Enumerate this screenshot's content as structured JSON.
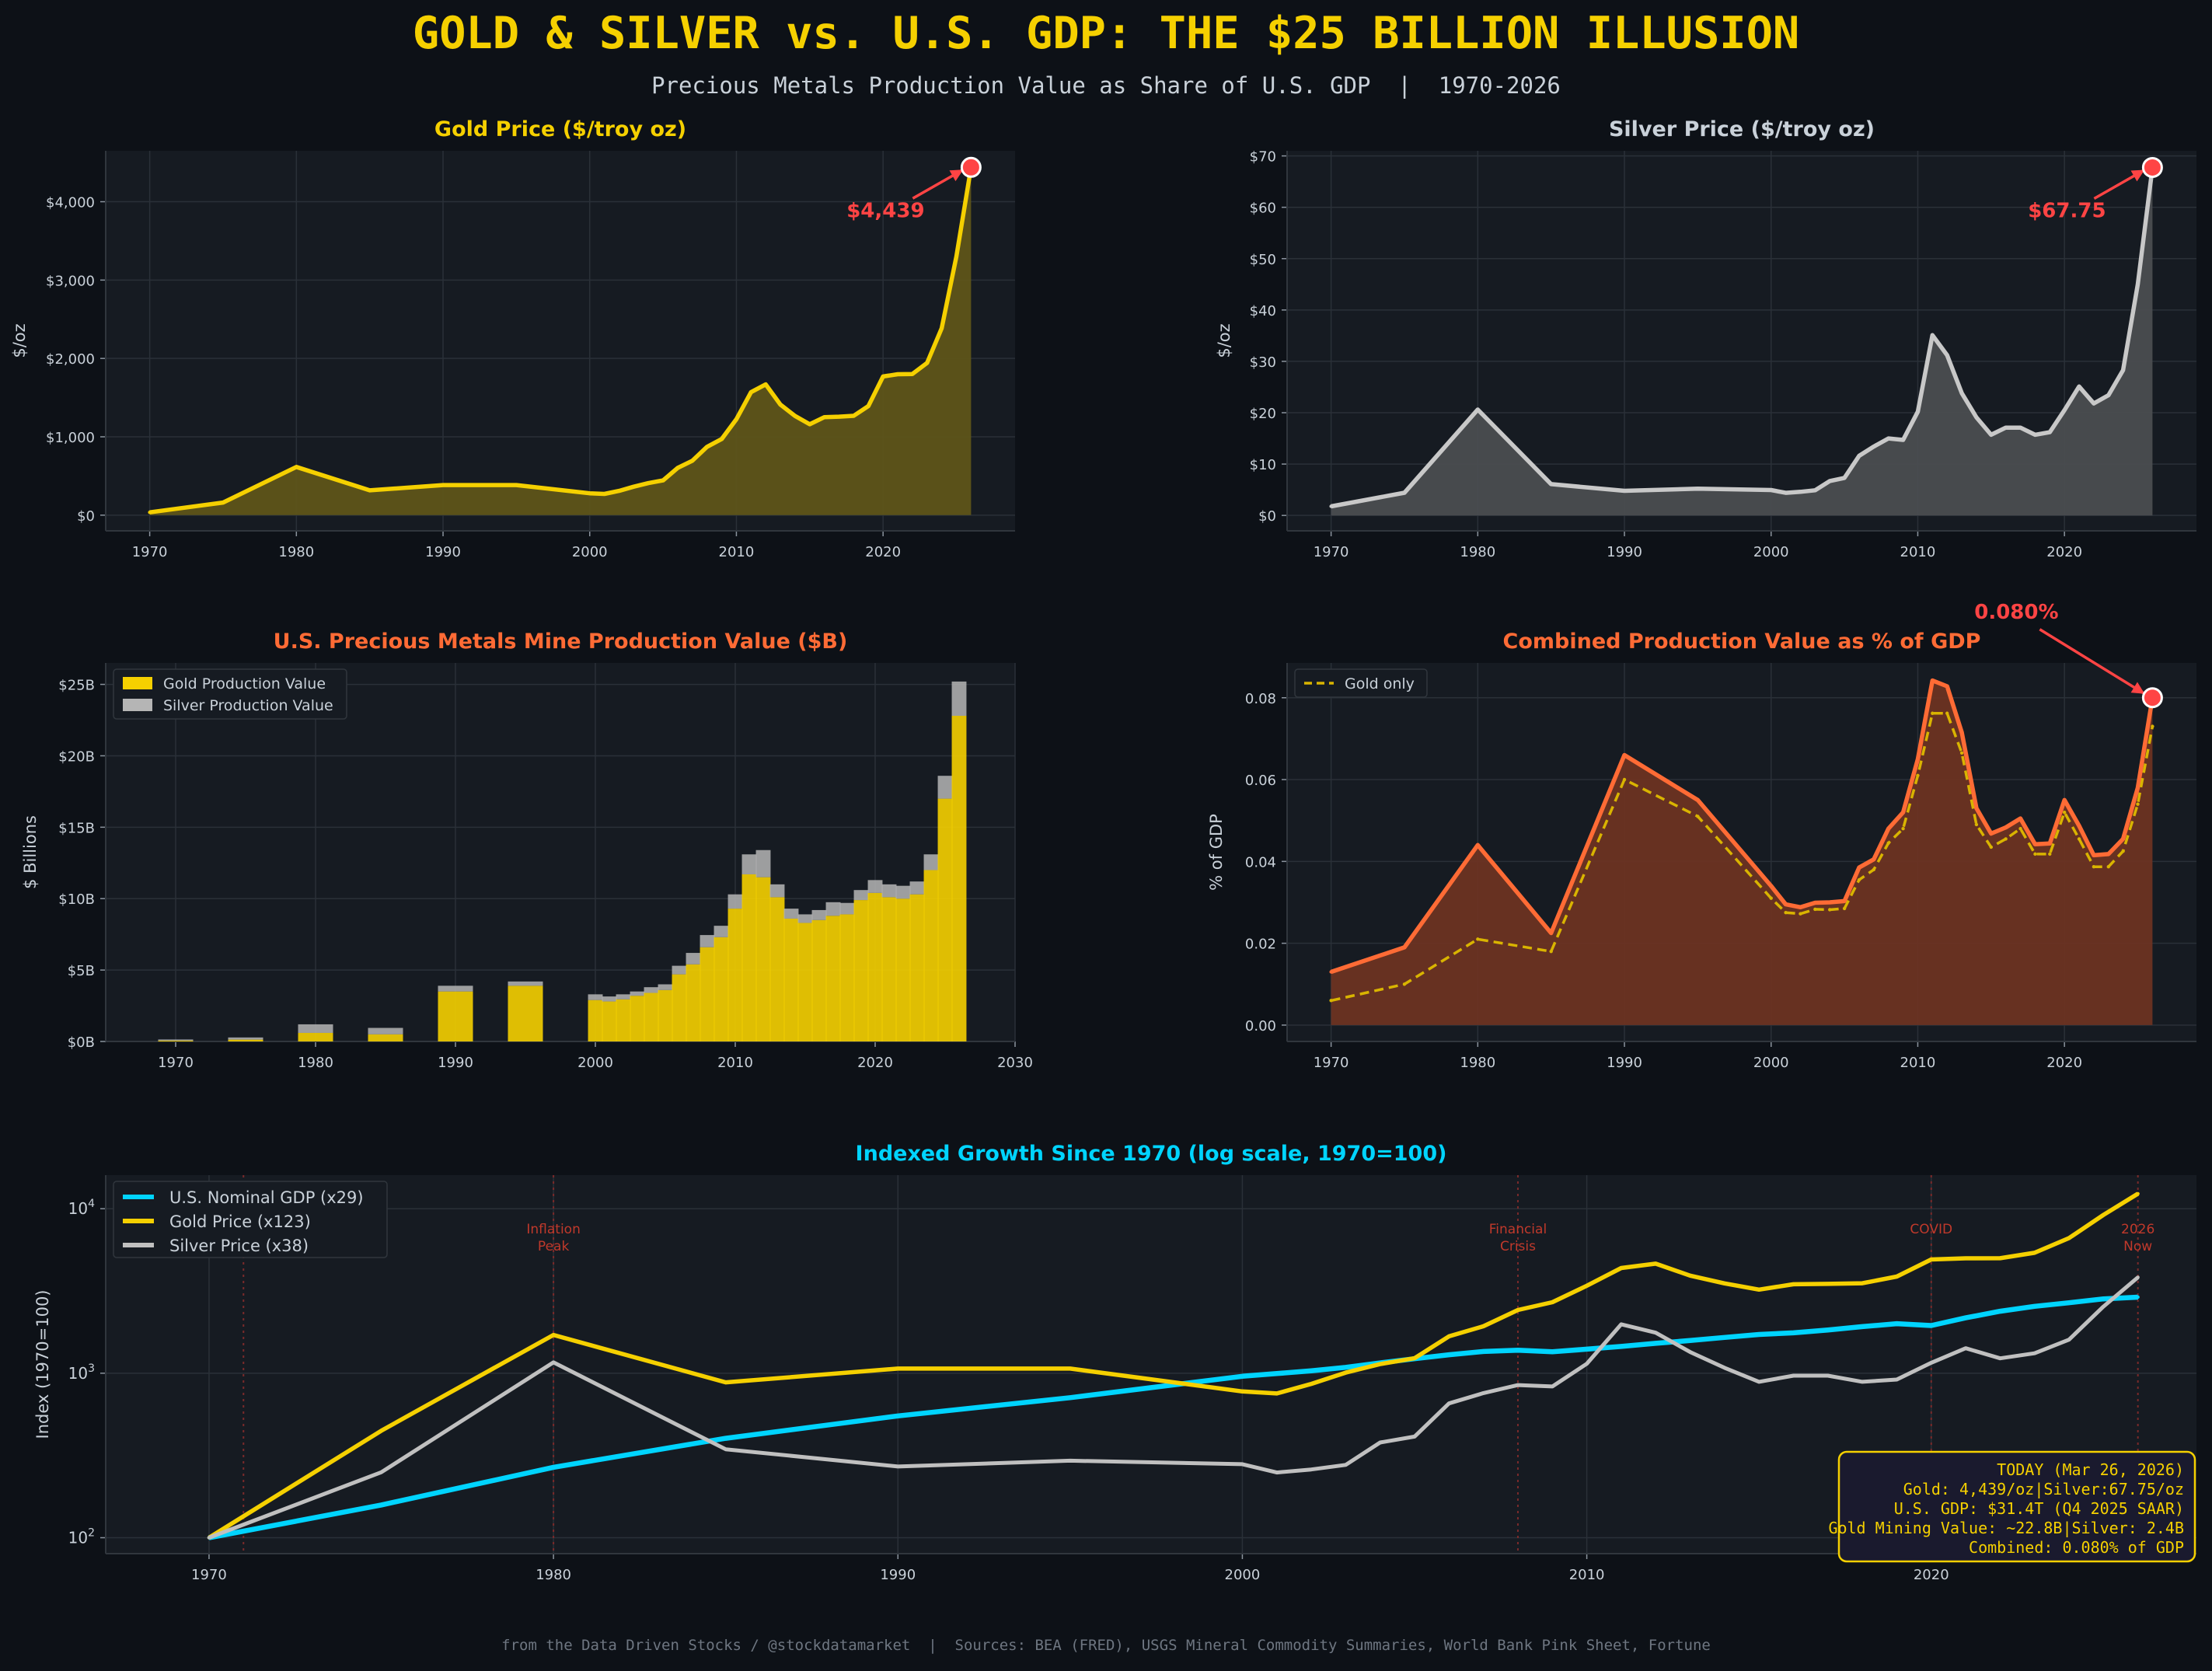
{
  "header": {
    "title": "GOLD & SILVER vs. U.S. GDP: THE $25 BILLION ILLUSION",
    "subtitle": "Precious Metals Production Value as Share of U.S. GDP  |  1970-2026"
  },
  "footer": {
    "text": "from the Data Driven Stocks / @stockdatamarket  |  Sources: BEA (FRED), USGS Mineral Commodity Summaries, World Bank Pink Sheet, Fortune"
  },
  "colors": {
    "background": "#0d1117",
    "panel": "#161b22",
    "gold": "#f5d000",
    "silver": "#c0c0c0",
    "orange": "#ff6b35",
    "cyan": "#00d4ff",
    "red": "#ff4444",
    "text": "#c9d1d9"
  },
  "chart_data": [
    {
      "id": "gold_price",
      "type": "area",
      "title": "Gold Price ($/troy oz)",
      "ylabel": "$/oz",
      "xlabel": "",
      "xlim": [
        1967,
        2029
      ],
      "ylim": [
        -200,
        4650
      ],
      "xticks": [
        1970,
        1980,
        1990,
        2000,
        2010,
        2020
      ],
      "xtick_labels": [
        "1970",
        "1980",
        "1990",
        "2000",
        "2010",
        "2020"
      ],
      "yticks": [
        0,
        1000,
        2000,
        3000,
        4000
      ],
      "ytick_labels": [
        "$0",
        "$1,000",
        "$2,000",
        "$3,000",
        "$4,000"
      ],
      "x": [
        1970,
        1975,
        1980,
        1985,
        1990,
        1995,
        2000,
        2001,
        2002,
        2003,
        2004,
        2005,
        2006,
        2007,
        2008,
        2009,
        2010,
        2011,
        2012,
        2013,
        2014,
        2015,
        2016,
        2017,
        2018,
        2019,
        2020,
        2021,
        2022,
        2023,
        2024,
        2025,
        2026
      ],
      "values": [
        36,
        161,
        615,
        317,
        384,
        384,
        279,
        271,
        310,
        363,
        409,
        444,
        603,
        695,
        872,
        972,
        1225,
        1569,
        1669,
        1411,
        1266,
        1160,
        1251,
        1257,
        1268,
        1393,
        1770,
        1799,
        1801,
        1943,
        2386,
        3300,
        4439
      ],
      "annotation": {
        "label": "$4,439",
        "x": 2026,
        "y": 4439
      }
    },
    {
      "id": "silver_price",
      "type": "area",
      "title": "Silver Price ($/troy oz)",
      "ylabel": "$/oz",
      "xlabel": "",
      "xlim": [
        1967,
        2029
      ],
      "ylim": [
        -3,
        71
      ],
      "xticks": [
        1970,
        1980,
        1990,
        2000,
        2010,
        2020
      ],
      "xtick_labels": [
        "1970",
        "1980",
        "1990",
        "2000",
        "2010",
        "2020"
      ],
      "yticks": [
        0,
        10,
        20,
        30,
        40,
        50,
        60,
        70
      ],
      "ytick_labels": [
        "$0",
        "$10",
        "$20",
        "$30",
        "$40",
        "$50",
        "$60",
        "$70"
      ],
      "x": [
        1970,
        1975,
        1980,
        1985,
        1990,
        1995,
        2000,
        2001,
        2002,
        2003,
        2004,
        2005,
        2006,
        2007,
        2008,
        2009,
        2010,
        2011,
        2012,
        2013,
        2014,
        2015,
        2016,
        2017,
        2018,
        2019,
        2020,
        2021,
        2022,
        2023,
        2024,
        2025,
        2026
      ],
      "values": [
        1.77,
        4.42,
        20.6,
        6.1,
        4.8,
        5.2,
        4.95,
        4.4,
        4.6,
        4.9,
        6.7,
        7.3,
        11.6,
        13.4,
        15.0,
        14.7,
        20.2,
        35.1,
        31.2,
        23.8,
        19.1,
        15.7,
        17.1,
        17.1,
        15.7,
        16.2,
        20.5,
        25.1,
        21.8,
        23.4,
        28.3,
        45.0,
        67.75
      ],
      "annotation": {
        "label": "$67.75",
        "x": 2026,
        "y": 67.75
      }
    },
    {
      "id": "production_value",
      "type": "bar",
      "title": "U.S. Precious Metals Mine Production Value ($B)",
      "ylabel": "$ Billions",
      "xlabel": "",
      "xlim": [
        1965,
        2030
      ],
      "ylim": [
        0,
        26.5
      ],
      "xticks": [
        1970,
        1980,
        1990,
        2000,
        2010,
        2020,
        2030
      ],
      "xtick_labels": [
        "1970",
        "1980",
        "1990",
        "2000",
        "2010",
        "2020",
        "2030"
      ],
      "yticks": [
        0,
        5,
        10,
        15,
        20,
        25
      ],
      "ytick_labels": [
        "$0B",
        "$5B",
        "$10B",
        "$15B",
        "$20B",
        "$25B"
      ],
      "categories": [
        1970,
        1975,
        1980,
        1985,
        1990,
        1995,
        2000,
        2001,
        2002,
        2003,
        2004,
        2005,
        2006,
        2007,
        2008,
        2009,
        2010,
        2011,
        2012,
        2013,
        2014,
        2015,
        2016,
        2017,
        2018,
        2019,
        2020,
        2021,
        2022,
        2023,
        2024,
        2025,
        2026
      ],
      "series": [
        {
          "name": "Gold Production Value",
          "values": [
            0.06,
            0.13,
            0.6,
            0.5,
            3.5,
            3.9,
            2.9,
            2.8,
            2.95,
            3.2,
            3.4,
            3.6,
            4.7,
            5.4,
            6.6,
            7.3,
            9.3,
            11.7,
            11.5,
            10.1,
            8.6,
            8.3,
            8.5,
            8.8,
            8.9,
            9.9,
            10.4,
            10.1,
            10.0,
            10.3,
            12.0,
            17.0,
            22.8
          ]
        },
        {
          "name": "Silver Production Value",
          "values": [
            0.08,
            0.15,
            0.6,
            0.45,
            0.4,
            0.3,
            0.4,
            0.35,
            0.35,
            0.3,
            0.4,
            0.4,
            0.6,
            0.8,
            0.85,
            0.8,
            1.0,
            1.4,
            1.9,
            0.9,
            0.7,
            0.6,
            0.7,
            0.95,
            0.8,
            0.7,
            0.9,
            0.9,
            0.9,
            0.9,
            1.1,
            1.6,
            2.4
          ]
        }
      ]
    },
    {
      "id": "gdp_share",
      "type": "area",
      "title": "Combined Production Value as % of GDP",
      "ylabel": "% of GDP",
      "xlabel": "",
      "xlim": [
        1967,
        2029
      ],
      "ylim": [
        -0.004,
        0.0885
      ],
      "xticks": [
        1970,
        1980,
        1990,
        2000,
        2010,
        2020
      ],
      "xtick_labels": [
        "1970",
        "1980",
        "1990",
        "2000",
        "2010",
        "2020"
      ],
      "yticks": [
        0,
        0.02,
        0.04,
        0.06,
        0.08
      ],
      "ytick_labels": [
        "0.00",
        "0.02",
        "0.04",
        "0.06",
        "0.08"
      ],
      "x": [
        1970,
        1975,
        1980,
        1985,
        1990,
        1995,
        2000,
        2001,
        2002,
        2003,
        2004,
        2005,
        2006,
        2007,
        2008,
        2009,
        2010,
        2011,
        2012,
        2013,
        2014,
        2015,
        2016,
        2017,
        2018,
        2019,
        2020,
        2021,
        2022,
        2023,
        2024,
        2025,
        2026
      ],
      "series": [
        {
          "name": "Combined",
          "values": [
            0.013,
            0.019,
            0.044,
            0.0225,
            0.066,
            0.055,
            0.034,
            0.0295,
            0.0288,
            0.0299,
            0.03,
            0.0303,
            0.0385,
            0.0405,
            0.048,
            0.052,
            0.065,
            0.0842,
            0.0828,
            0.0715,
            0.053,
            0.0468,
            0.0483,
            0.0505,
            0.0442,
            0.0444,
            0.055,
            0.0487,
            0.0415,
            0.0418,
            0.0455,
            0.058,
            0.08
          ]
        },
        {
          "name": "Gold only",
          "values": [
            0.006,
            0.01,
            0.021,
            0.018,
            0.06,
            0.051,
            0.031,
            0.0275,
            0.0272,
            0.0283,
            0.0282,
            0.0285,
            0.0355,
            0.038,
            0.0445,
            0.048,
            0.061,
            0.0762,
            0.0762,
            0.0665,
            0.049,
            0.0435,
            0.0455,
            0.048,
            0.0418,
            0.0418,
            0.052,
            0.0455,
            0.0387,
            0.0387,
            0.0425,
            0.054,
            0.073
          ]
        }
      ],
      "annotation": {
        "label": "0.080%",
        "x": 2026,
        "y": 0.08
      }
    },
    {
      "id": "indexed_growth",
      "type": "line",
      "title": "Indexed Growth Since 1970 (log scale, 1970=100)",
      "ylabel": "Index (1970=100)",
      "xlabel": "",
      "yscale": "log",
      "xlim": [
        1967,
        2027.7
      ],
      "ylim": [
        80,
        16000
      ],
      "xticks": [
        1970,
        1980,
        1990,
        2000,
        2010,
        2020
      ],
      "xtick_labels": [
        "1970",
        "1980",
        "1990",
        "2000",
        "2010",
        "2020"
      ],
      "yticks": [
        100,
        1000,
        10000
      ],
      "ytick_labels": [
        {
          "base": "10",
          "exp": "2"
        },
        {
          "base": "10",
          "exp": "3"
        },
        {
          "base": "10",
          "exp": "4"
        }
      ],
      "x": [
        1970,
        1975,
        1980,
        1985,
        1990,
        1995,
        2000,
        2001,
        2002,
        2003,
        2004,
        2005,
        2006,
        2007,
        2008,
        2009,
        2010,
        2011,
        2012,
        2013,
        2014,
        2015,
        2016,
        2017,
        2018,
        2019,
        2020,
        2021,
        2022,
        2023,
        2024,
        2025,
        2026
      ],
      "series": [
        {
          "name": "U.S. Nominal GDP (x29)",
          "color_key": "cyan",
          "values": [
            100,
            158,
            268,
            402,
            550,
            710,
            958,
            995,
            1035,
            1085,
            1155,
            1225,
            1295,
            1355,
            1380,
            1350,
            1400,
            1455,
            1520,
            1580,
            1650,
            1720,
            1760,
            1830,
            1920,
            2000,
            1950,
            2170,
            2380,
            2550,
            2680,
            2830,
            2900
          ]
        },
        {
          "name": "Gold Price (x123)",
          "color_key": "gold",
          "values": [
            100,
            447,
            1709,
            880,
            1067,
            1067,
            775,
            753,
            861,
            1008,
            1136,
            1233,
            1675,
            1931,
            2422,
            2700,
            3403,
            4358,
            4636,
            3919,
            3517,
            3222,
            3475,
            3492,
            3522,
            3869,
            4917,
            4997,
            5003,
            5397,
            6628,
            9167,
            12331
          ]
        },
        {
          "name": "Silver Price (x38)",
          "color_key": "silver",
          "values": [
            100,
            250,
            1164,
            345,
            271,
            294,
            280,
            249,
            260,
            277,
            379,
            412,
            655,
            757,
            847,
            831,
            1141,
            1983,
            1763,
            1345,
            1079,
            887,
            966,
            966,
            887,
            915,
            1158,
            1418,
            1232,
            1322,
            1599,
            2542,
            3828
          ]
        }
      ],
      "events": [
        {
          "year": 1971,
          "label_lines": []
        },
        {
          "year": 1980,
          "label_lines": [
            "Inflation",
            "Peak"
          ]
        },
        {
          "year": 2008,
          "label_lines": [
            "Financial",
            "Crisis"
          ]
        },
        {
          "year": 2020,
          "label_lines": [
            "COVID"
          ]
        },
        {
          "year": 2026,
          "label_lines": [
            "2026",
            "Now"
          ]
        }
      ],
      "info_box": {
        "lines": [
          "TODAY (Mar 26, 2026)",
          "Gold: 4,439/oz|Silver:67.75/oz",
          "U.S. GDP: $31.4T (Q4 2025 SAAR)",
          "Gold Mining Value: ~22.8B|Silver: 2.4B",
          "Combined: 0.080% of GDP"
        ]
      }
    }
  ]
}
